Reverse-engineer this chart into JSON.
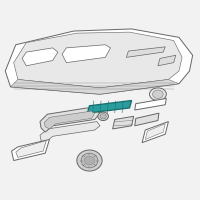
{
  "bg_color": "#f2f2f2",
  "line_color": "#666666",
  "highlight_color": "#2a9d9f",
  "highlight_edge": "#1a7070",
  "line_width": 0.7,
  "fig_width": 2.0,
  "fig_height": 2.0
}
